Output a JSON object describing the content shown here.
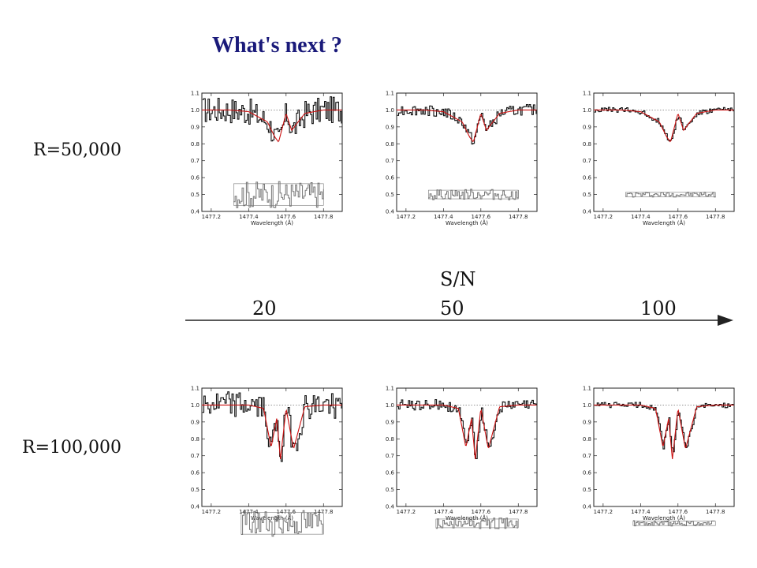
{
  "slide": {
    "title": "What's next ?"
  },
  "rows": [
    {
      "label": "R=50,000"
    },
    {
      "label": "R=100,000"
    }
  ],
  "sn_axis": {
    "title": "S/N",
    "values": [
      "20",
      "50",
      "100"
    ]
  },
  "colors": {
    "title": "#1a1a7a",
    "fit": "#cc1111",
    "data": "#111111",
    "residual": "#777777",
    "continuum": "#2e8b2e"
  },
  "chart_data": [
    {
      "type": "line",
      "resolution": "R=50,000",
      "sn": "20",
      "xlim": [
        1477.15,
        1477.9
      ],
      "ylim": [
        0.4,
        1.1
      ],
      "xlabel": "Wavelength (Å)",
      "xticks": [
        "1477.2",
        "1477.4",
        "1477.6",
        "1477.8"
      ],
      "yticks": [
        "0.4",
        "0.5",
        "0.6",
        "0.7",
        "0.8",
        "0.9",
        "1.0",
        "1.1"
      ],
      "series": [
        {
          "x": [
            1477.2,
            1477.3,
            1477.4,
            1477.5,
            1477.54,
            1477.56,
            1477.6,
            1477.63,
            1477.7,
            1477.8,
            1477.9
          ],
          "y": [
            1.0,
            1.0,
            0.99,
            0.93,
            0.84,
            0.81,
            0.98,
            0.88,
            0.98,
            1.0,
            1.0
          ]
        }
      ]
    },
    {
      "type": "line",
      "resolution": "R=50,000",
      "sn": "50",
      "xlim": [
        1477.15,
        1477.9
      ],
      "ylim": [
        0.4,
        1.1
      ],
      "xlabel": "Wavelength (Å)",
      "xticks": [
        "1477.2",
        "1477.4",
        "1477.6",
        "1477.8"
      ],
      "yticks": [
        "0.4",
        "0.5",
        "0.6",
        "0.7",
        "0.8",
        "0.9",
        "1.0",
        "1.1"
      ],
      "series": [
        {
          "x": [
            1477.2,
            1477.3,
            1477.4,
            1477.5,
            1477.54,
            1477.56,
            1477.6,
            1477.63,
            1477.7,
            1477.8,
            1477.9
          ],
          "y": [
            1.0,
            1.0,
            0.99,
            0.93,
            0.84,
            0.81,
            0.98,
            0.88,
            0.98,
            1.0,
            1.0
          ]
        }
      ]
    },
    {
      "type": "line",
      "resolution": "R=50,000",
      "sn": "100",
      "xlim": [
        1477.15,
        1477.9
      ],
      "ylim": [
        0.4,
        1.1
      ],
      "xlabel": "Wavelength (Å)",
      "xticks": [
        "1477.2",
        "1477.4",
        "1477.6",
        "1477.8"
      ],
      "yticks": [
        "0.4",
        "0.5",
        "0.6",
        "0.7",
        "0.8",
        "0.9",
        "1.0",
        "1.1"
      ],
      "series": [
        {
          "x": [
            1477.2,
            1477.3,
            1477.4,
            1477.5,
            1477.54,
            1477.56,
            1477.6,
            1477.63,
            1477.7,
            1477.8,
            1477.9
          ],
          "y": [
            1.0,
            1.0,
            0.99,
            0.93,
            0.84,
            0.81,
            0.98,
            0.88,
            0.98,
            1.0,
            1.0
          ]
        }
      ]
    },
    {
      "type": "line",
      "resolution": "R=100,000",
      "sn": "20",
      "xlim": [
        1477.15,
        1477.9
      ],
      "ylim": [
        0.4,
        1.1
      ],
      "xlabel": "Wavelength (Å)",
      "xticks": [
        "1477.2",
        "1477.4",
        "1477.6",
        "1477.8"
      ],
      "yticks": [
        "0.4",
        "0.5",
        "0.6",
        "0.7",
        "0.8",
        "0.9",
        "1.0",
        "1.1"
      ],
      "series": [
        {
          "x": [
            1477.2,
            1477.3,
            1477.4,
            1477.48,
            1477.52,
            1477.55,
            1477.57,
            1477.6,
            1477.64,
            1477.7,
            1477.8,
            1477.9
          ],
          "y": [
            1.0,
            1.0,
            1.0,
            0.98,
            0.75,
            0.92,
            0.68,
            0.98,
            0.74,
            0.99,
            1.0,
            1.0
          ]
        }
      ]
    },
    {
      "type": "line",
      "resolution": "R=100,000",
      "sn": "50",
      "xlim": [
        1477.15,
        1477.9
      ],
      "ylim": [
        0.4,
        1.1
      ],
      "xlabel": "Wavelength (Å)",
      "xticks": [
        "1477.2",
        "1477.4",
        "1477.6",
        "1477.8"
      ],
      "yticks": [
        "0.4",
        "0.5",
        "0.6",
        "0.7",
        "0.8",
        "0.9",
        "1.0",
        "1.1"
      ],
      "series": [
        {
          "x": [
            1477.2,
            1477.3,
            1477.4,
            1477.48,
            1477.52,
            1477.55,
            1477.57,
            1477.6,
            1477.64,
            1477.7,
            1477.8,
            1477.9
          ],
          "y": [
            1.0,
            1.0,
            1.0,
            0.98,
            0.75,
            0.92,
            0.68,
            0.98,
            0.74,
            0.99,
            1.0,
            1.0
          ]
        }
      ]
    },
    {
      "type": "line",
      "resolution": "R=100,000",
      "sn": "100",
      "xlim": [
        1477.15,
        1477.9
      ],
      "ylim": [
        0.4,
        1.1
      ],
      "xlabel": "Wavelength (Å)",
      "xticks": [
        "1477.2",
        "1477.4",
        "1477.6",
        "1477.8"
      ],
      "yticks": [
        "0.4",
        "0.5",
        "0.6",
        "0.7",
        "0.8",
        "0.9",
        "1.0",
        "1.1"
      ],
      "series": [
        {
          "x": [
            1477.2,
            1477.3,
            1477.4,
            1477.48,
            1477.52,
            1477.55,
            1477.57,
            1477.6,
            1477.64,
            1477.7,
            1477.8,
            1477.9
          ],
          "y": [
            1.0,
            1.0,
            1.0,
            0.98,
            0.75,
            0.92,
            0.68,
            0.98,
            0.74,
            0.99,
            1.0,
            1.0
          ]
        }
      ]
    }
  ]
}
